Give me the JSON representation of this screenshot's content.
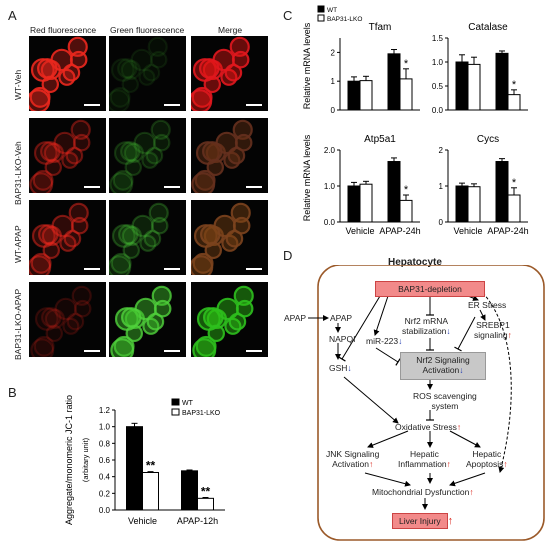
{
  "panels": {
    "A": "A",
    "B": "B",
    "C": "C",
    "D": "D"
  },
  "panel_a": {
    "columns": [
      "Red fluorescence",
      "Green fluorescence",
      "Merge"
    ],
    "rows": [
      "WT-Veh",
      "BAP31-LKO-Veh",
      "WT-APAP",
      "BAP31-LKO-APAP"
    ],
    "red_level": [
      1.0,
      0.45,
      0.55,
      0.2
    ],
    "green_level": [
      0.12,
      0.25,
      0.35,
      1.0
    ],
    "colors": {
      "red": "#e0261c",
      "green": "#3fbf2a"
    }
  },
  "chart_data": [
    {
      "id": "B",
      "type": "bar",
      "categories": [
        "Vehicle",
        "APAP-12h"
      ],
      "series": [
        {
          "name": "WT",
          "values": [
            1.0,
            0.47
          ],
          "errors": [
            0.04,
            0.01
          ],
          "color": "#000000"
        },
        {
          "name": "BAP31-LKO",
          "values": [
            0.45,
            0.14
          ],
          "errors": [
            0.01,
            0.01
          ],
          "color": "#ffffff"
        }
      ],
      "ylabel": "Aggregate/monomeric JC-1 ratio",
      "ylabel_sub": "(arbitary unit)",
      "ylim": [
        0,
        1.2
      ],
      "yticks": [
        "0.0",
        "0.2",
        "0.4",
        "0.6",
        "0.8",
        "1.0",
        "1.2"
      ],
      "significance": [
        {
          "category": "Vehicle",
          "label": "**"
        },
        {
          "category": "APAP-12h",
          "label": "**"
        }
      ],
      "legend": "top-right"
    },
    {
      "id": "C",
      "type": "bar",
      "ylabel": "Relative mRNA levels",
      "categories": [
        "Vehicle",
        "APAP-24h"
      ],
      "legend": [
        "WT",
        "BAP31-LKO"
      ],
      "subplots": [
        {
          "title": "Tfam",
          "ylim": [
            0,
            2.5
          ],
          "yticks": [
            "0",
            "1",
            "2"
          ],
          "series": [
            {
              "name": "WT",
              "values": [
                1.0,
                1.95
              ]
            },
            {
              "name": "BAP31-LKO",
              "values": [
                1.02,
                1.08
              ]
            }
          ],
          "errors": [
            [
              0.15,
              0.15
            ],
            [
              0.15,
              0.35
            ]
          ],
          "star": "*"
        },
        {
          "title": "Catalase",
          "ylim": [
            0,
            1.5
          ],
          "yticks": [
            "0.0",
            "0.5",
            "1.0",
            "1.5"
          ],
          "series": [
            {
              "name": "WT",
              "values": [
                1.0,
                1.18
              ]
            },
            {
              "name": "BAP31-LKO",
              "values": [
                0.95,
                0.32
              ]
            }
          ],
          "errors": [
            [
              0.15,
              0.05
            ],
            [
              0.15,
              0.1
            ]
          ],
          "star": "*"
        },
        {
          "title": "Atp5a1",
          "ylim": [
            0,
            2.0
          ],
          "yticks": [
            "0.0",
            "1.0",
            "2.0"
          ],
          "series": [
            {
              "name": "WT",
              "values": [
                1.0,
                1.68
              ]
            },
            {
              "name": "BAP31-LKO",
              "values": [
                1.05,
                0.6
              ]
            }
          ],
          "errors": [
            [
              0.1,
              0.1
            ],
            [
              0.08,
              0.15
            ]
          ],
          "star": "*"
        },
        {
          "title": "Cycs",
          "ylim": [
            0,
            2.0
          ],
          "yticks": [
            "0",
            "1",
            "2"
          ],
          "series": [
            {
              "name": "WT",
              "values": [
                1.0,
                1.68
              ]
            },
            {
              "name": "BAP31-LKO",
              "values": [
                0.98,
                0.75
              ]
            }
          ],
          "errors": [
            [
              0.08,
              0.08
            ],
            [
              0.08,
              0.2
            ]
          ],
          "star": "*"
        }
      ]
    }
  ],
  "panel_d": {
    "title": "Hepatocyte",
    "colors": {
      "border": "#9b5a2a",
      "box_pink": "#f28a8a",
      "box_gray": "#c8c8c8",
      "up": "#d9261c",
      "down": "#1f3ab0"
    },
    "nodes": {
      "bap31": "BAP31-depletion",
      "apap_out": "APAP",
      "apap_in": "APAP",
      "napqi": "NAPQI",
      "gsh": "GSH",
      "mir": "miR-223",
      "nrf2_mrna_1": "Nrf2 mRNA",
      "nrf2_mrna_2": "stabilization",
      "er": "ER Stress",
      "srebp_1": "SREBP1",
      "srebp_2": "signaling",
      "nrf2_sig_1": "Nrf2 Signaling",
      "nrf2_sig_2": "Activation",
      "ros_1": "ROS scavenging",
      "ros_2": "system",
      "ox": "Oxidative Stress",
      "jnk_1": "JNK Signaling",
      "jnk_2": "Activation",
      "hi_1": "Hepatic",
      "hi_2": "Inflammation",
      "ha_1": "Hepatic",
      "ha_2": "Apoptosis",
      "mito": "Mitochondrial Dysfunction",
      "liver": "Liver Injury"
    },
    "arrows": {
      "up": "↑",
      "down": "↓"
    }
  }
}
